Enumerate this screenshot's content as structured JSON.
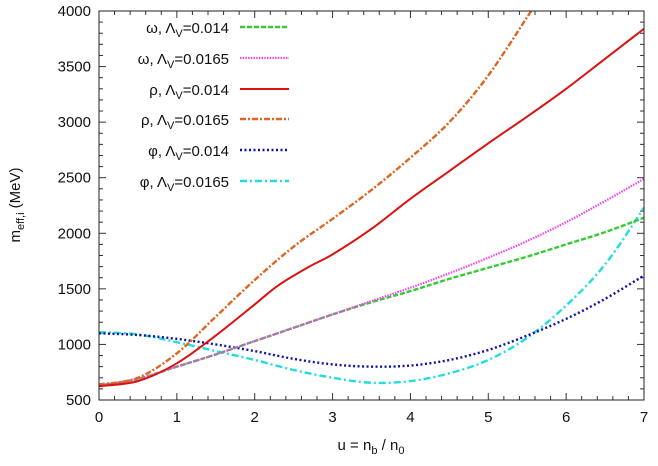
{
  "chart_data": {
    "type": "line",
    "title": "",
    "xlabel": {
      "parts": [
        "u = n",
        "b",
        " / n",
        "0"
      ]
    },
    "ylabel": {
      "parts": [
        "m",
        "eff,i",
        " (MeV)"
      ]
    },
    "xlim": [
      0,
      7
    ],
    "ylim": [
      500,
      4000
    ],
    "xticks": [
      "0",
      "1",
      "2",
      "3",
      "4",
      "5",
      "6",
      "7"
    ],
    "yticks": [
      "500",
      "1000",
      "1500",
      "2000",
      "2500",
      "3000",
      "3500",
      "4000"
    ],
    "grid": false,
    "legend_position": "top-left",
    "series": [
      {
        "name": "ω, ΛV=0.014",
        "label": {
          "prefix": "ω, Λ",
          "sub": "V",
          "suffix": "=0.014"
        },
        "color": "#33cc33",
        "style": "dashed",
        "x": [
          0,
          0.5,
          1,
          1.5,
          2,
          2.5,
          3,
          3.5,
          4,
          4.5,
          5,
          5.5,
          6,
          6.5,
          7
        ],
        "y": [
          630,
          690,
          800,
          910,
          1030,
          1150,
          1270,
          1380,
          1480,
          1590,
          1690,
          1790,
          1900,
          2010,
          2140
        ]
      },
      {
        "name": "ω, ΛV=0.0165",
        "label": {
          "prefix": "ω, Λ",
          "sub": "V",
          "suffix": "=0.0165"
        },
        "color": "#ee44ee",
        "style": "dotted",
        "x": [
          0,
          0.5,
          1,
          1.5,
          2,
          2.5,
          3,
          3.5,
          4,
          4.5,
          5,
          5.5,
          6,
          6.5,
          7
        ],
        "y": [
          630,
          690,
          800,
          910,
          1030,
          1150,
          1270,
          1390,
          1510,
          1640,
          1780,
          1930,
          2100,
          2290,
          2490
        ]
      },
      {
        "name": "ρ, ΛV=0.014",
        "label": {
          "prefix": "ρ, Λ",
          "sub": "V",
          "suffix": "=0.014"
        },
        "color": "#dd1111",
        "style": "solid",
        "x": [
          0,
          0.5,
          1,
          1.5,
          2,
          2.3,
          2.7,
          3,
          3.5,
          4,
          4.5,
          5,
          5.5,
          6,
          6.5,
          7
        ],
        "y": [
          625,
          670,
          830,
          1080,
          1360,
          1530,
          1700,
          1810,
          2040,
          2310,
          2560,
          2810,
          3050,
          3300,
          3570,
          3840
        ]
      },
      {
        "name": "ρ, ΛV=0.0165",
        "label": {
          "prefix": "ρ, Λ",
          "sub": "V",
          "suffix": "=0.0165"
        },
        "color": "#dd6622",
        "style": "dash-dot",
        "x": [
          0,
          0.5,
          1,
          1.5,
          2,
          2.5,
          3,
          3.5,
          4,
          4.5,
          5,
          5.55
        ],
        "y": [
          640,
          700,
          920,
          1250,
          1580,
          1880,
          2130,
          2390,
          2680,
          3000,
          3420,
          4000
        ]
      },
      {
        "name": "φ, ΛV=0.014",
        "label": {
          "prefix": "φ, Λ",
          "sub": "V",
          "suffix": "=0.014"
        },
        "color": "#1111aa",
        "style": "dotted",
        "x": [
          0,
          0.5,
          1,
          1.5,
          2,
          2.5,
          3,
          3.5,
          4,
          4.5,
          5,
          5.5,
          6,
          6.5,
          7
        ],
        "y": [
          1100,
          1085,
          1050,
          1000,
          940,
          870,
          820,
          800,
          810,
          860,
          950,
          1080,
          1230,
          1410,
          1620
        ]
      },
      {
        "name": "φ, ΛV=0.0165",
        "label": {
          "prefix": "φ, Λ",
          "sub": "V",
          "suffix": "=0.0165"
        },
        "color": "#22dddd",
        "style": "dash-dot",
        "x": [
          0,
          0.5,
          1,
          1.5,
          2,
          2.5,
          3,
          3.5,
          4,
          4.5,
          5,
          5.5,
          6,
          6.5,
          7
        ],
        "y": [
          1110,
          1090,
          1020,
          940,
          860,
          770,
          700,
          655,
          670,
          740,
          860,
          1060,
          1350,
          1720,
          2230
        ]
      }
    ]
  }
}
